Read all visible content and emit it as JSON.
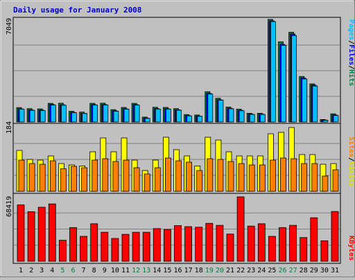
{
  "chart_data": {
    "type": "bar",
    "title": "Daily usage for January 2008",
    "days": [
      "1",
      "2",
      "3",
      "4",
      "5",
      "6",
      "7",
      "8",
      "9",
      "10",
      "11",
      "12",
      "13",
      "14",
      "15",
      "16",
      "17",
      "18",
      "19",
      "20",
      "21",
      "22",
      "23",
      "24",
      "25",
      "26",
      "27",
      "28",
      "29",
      "30",
      "31"
    ],
    "weekend_days": [
      "5",
      "6",
      "12",
      "13",
      "19",
      "20",
      "26",
      "27"
    ],
    "colors": {
      "title": "#0000cc",
      "hits": "#008040",
      "files": "#0000ff",
      "pages": "#00c0ff",
      "visits": "#ffff00",
      "sites": "#ff8000",
      "kbytes": "#ff0000",
      "weekday_label": "#000000",
      "weekend_label": "#008040",
      "plot_bg": "#c0c0c0"
    },
    "panels": [
      {
        "id": "top",
        "max_label": "7049",
        "max": 7049,
        "series": [
          {
            "name": "Hits",
            "values": [
              990,
              920,
              900,
              1280,
              1290,
              740,
              680,
              1280,
              1290,
              850,
              1000,
              1280,
              340,
              1010,
              1000,
              920,
              510,
              480,
              2080,
              1630,
              1030,
              880,
              600,
              600,
              7049,
              5510,
              6170,
              3130,
              2620,
              170,
              560
            ]
          },
          {
            "name": "Files",
            "values": [
              900,
              830,
              810,
              1200,
              1180,
              660,
              600,
              1190,
              1200,
              770,
              910,
              1190,
              270,
              920,
              910,
              840,
              440,
              410,
              1960,
              1530,
              940,
              800,
              540,
              540,
              6950,
              5340,
              6050,
              3030,
              2540,
              140,
              480
            ]
          },
          {
            "name": "Pages",
            "values": [
              880,
              800,
              780,
              1160,
              1150,
              640,
              580,
              1160,
              1170,
              740,
              880,
              1160,
              250,
              890,
              880,
              810,
              420,
              390,
              1920,
              1500,
              910,
              770,
              520,
              520,
              6900,
              5270,
              5940,
              2960,
              2470,
              120,
              450
            ]
          }
        ],
        "legend": [
          "Pages",
          "/",
          "Files",
          "/",
          "Hits"
        ]
      },
      {
        "id": "middle",
        "max_label": "184",
        "max": 184,
        "series": [
          {
            "name": "Visits",
            "values": [
              118,
              92,
              90,
              102,
              80,
              76,
              73,
              114,
              154,
              114,
              154,
              90,
              60,
              90,
              156,
              120,
              102,
              73,
              156,
              148,
              114,
              102,
              102,
              102,
              166,
              170,
              184,
              106,
              106,
              78,
              80
            ]
          },
          {
            "name": "Sites",
            "values": [
              90,
              80,
              78,
              88,
              65,
              72,
              68,
              90,
              94,
              86,
              90,
              68,
              50,
              68,
              96,
              88,
              84,
              60,
              94,
              92,
              86,
              80,
              76,
              76,
              90,
              96,
              94,
              80,
              80,
              44,
              62
            ]
          }
        ],
        "legend": [
          "Sites",
          "/",
          "Visits"
        ]
      },
      {
        "id": "bottom",
        "max_label": "68419",
        "max": 68419,
        "series": [
          {
            "name": "KBytes",
            "values": [
              59900,
              52700,
              57400,
              60900,
              22400,
              35800,
              26500,
              39900,
              30800,
              24300,
              28600,
              30800,
              30800,
              34700,
              33800,
              37900,
              36800,
              36200,
              40300,
              38200,
              28900,
              68419,
              37400,
              39900,
              26500,
              35800,
              38200,
              25200,
              46200,
              21800,
              52900
            ]
          }
        ],
        "legend": [
          "KBytes"
        ]
      }
    ]
  }
}
